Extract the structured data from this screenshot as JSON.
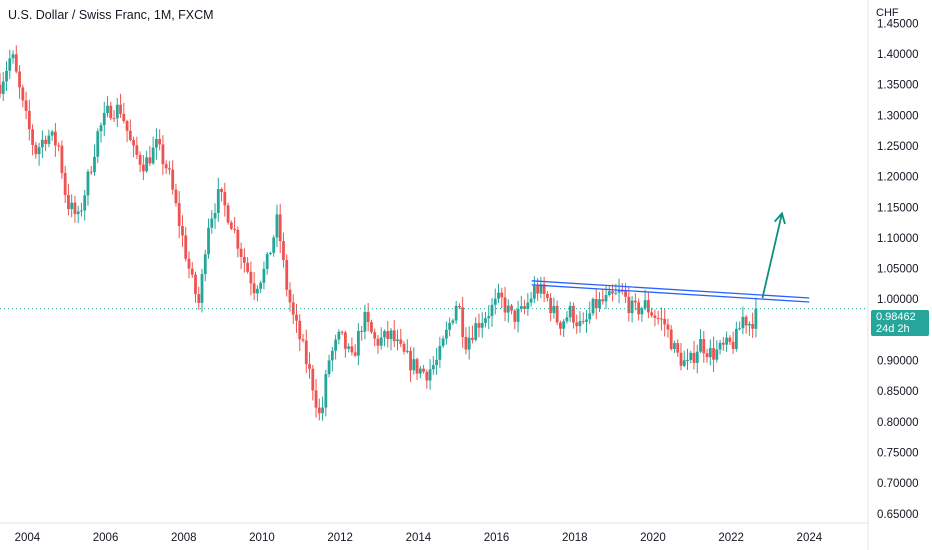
{
  "title": "U.S. Dollar / Swiss Franc, 1M, FXCM",
  "currency_label": "CHF",
  "price_label": {
    "price": "0.98462",
    "countdown": "24d 2h"
  },
  "colors": {
    "up": "#26a69a",
    "down": "#ef5350",
    "trendline": "#2962ff",
    "arrow": "#0e8f7e",
    "priceline": "#26a69a",
    "text": "#131722",
    "grid": "#e0e3eb"
  },
  "chart_data": {
    "type": "candlestick",
    "title": "U.S. Dollar / Swiss Franc, 1M, FXCM",
    "xlabel": "",
    "ylabel": "CHF",
    "xlim": [
      2003.3,
      2025.5
    ],
    "ylim": [
      0.635,
      1.475
    ],
    "x_ticks": [
      "2004",
      "2006",
      "2008",
      "2010",
      "2012",
      "2014",
      "2016",
      "2018",
      "2020",
      "2022",
      "2024"
    ],
    "x_tick_values": [
      2004,
      2006,
      2008,
      2010,
      2012,
      2014,
      2016,
      2018,
      2020,
      2022,
      2024
    ],
    "y_ticks": [
      "1.45000",
      "1.40000",
      "1.35000",
      "1.30000",
      "1.25000",
      "1.20000",
      "1.15000",
      "1.10000",
      "1.05000",
      "1.00000",
      "0.95000",
      "0.90000",
      "0.85000",
      "0.80000",
      "0.75000",
      "0.70000",
      "0.65000"
    ],
    "y_tick_values": [
      1.45,
      1.4,
      1.35,
      1.3,
      1.25,
      1.2,
      1.15,
      1.1,
      1.05,
      1.0,
      0.95,
      0.9,
      0.85,
      0.8,
      0.75,
      0.7,
      0.65
    ],
    "price_series": [
      [
        2003.3,
        1.35
      ],
      [
        2003.6,
        1.4
      ],
      [
        2003.9,
        1.31
      ],
      [
        2004.2,
        1.24
      ],
      [
        2004.5,
        1.27
      ],
      [
        2004.8,
        1.25
      ],
      [
        2005.0,
        1.16
      ],
      [
        2005.3,
        1.13
      ],
      [
        2005.6,
        1.21
      ],
      [
        2005.8,
        1.27
      ],
      [
        2006.1,
        1.31
      ],
      [
        2006.4,
        1.31
      ],
      [
        2006.7,
        1.24
      ],
      [
        2007.0,
        1.22
      ],
      [
        2007.3,
        1.25
      ],
      [
        2007.6,
        1.21
      ],
      [
        2007.8,
        1.15
      ],
      [
        2008.0,
        1.09
      ],
      [
        2008.2,
        1.03
      ],
      [
        2008.4,
        0.99
      ],
      [
        2008.6,
        1.12
      ],
      [
        2008.9,
        1.17
      ],
      [
        2009.2,
        1.13
      ],
      [
        2009.5,
        1.07
      ],
      [
        2009.8,
        1.02
      ],
      [
        2010.1,
        1.05
      ],
      [
        2010.4,
        1.13
      ],
      [
        2010.6,
        1.03
      ],
      [
        2010.8,
        0.97
      ],
      [
        2011.0,
        0.93
      ],
      [
        2011.3,
        0.86
      ],
      [
        2011.5,
        0.8
      ],
      [
        2011.7,
        0.9
      ],
      [
        2012.0,
        0.94
      ],
      [
        2012.3,
        0.9
      ],
      [
        2012.6,
        0.97
      ],
      [
        2012.9,
        0.93
      ],
      [
        2013.3,
        0.94
      ],
      [
        2013.6,
        0.91
      ],
      [
        2013.9,
        0.89
      ],
      [
        2014.2,
        0.88
      ],
      [
        2014.5,
        0.9
      ],
      [
        2014.8,
        0.96
      ],
      [
        2015.0,
        1.0
      ],
      [
        2015.2,
        0.93
      ],
      [
        2015.5,
        0.96
      ],
      [
        2015.8,
        0.98
      ],
      [
        2016.1,
        1.0
      ],
      [
        2016.4,
        0.97
      ],
      [
        2016.7,
        0.98
      ],
      [
        2017.0,
        1.02
      ],
      [
        2017.3,
        1.0
      ],
      [
        2017.6,
        0.96
      ],
      [
        2017.9,
        0.98
      ],
      [
        2018.2,
        0.95
      ],
      [
        2018.5,
        0.99
      ],
      [
        2018.9,
        1.0
      ],
      [
        2019.2,
        1.01
      ],
      [
        2019.5,
        0.98
      ],
      [
        2019.8,
        0.99
      ],
      [
        2020.1,
        0.97
      ],
      [
        2020.3,
        0.96
      ],
      [
        2020.6,
        0.91
      ],
      [
        2020.9,
        0.89
      ],
      [
        2021.2,
        0.93
      ],
      [
        2021.5,
        0.91
      ],
      [
        2021.8,
        0.92
      ],
      [
        2022.1,
        0.93
      ],
      [
        2022.3,
        0.97
      ],
      [
        2022.5,
        0.96
      ],
      [
        2022.7,
        0.98462
      ]
    ],
    "last_price": 0.98462,
    "annotations": {
      "trendline": {
        "start": [
          2016.9,
          1.03
        ],
        "end": [
          2024.0,
          1.002
        ]
      },
      "arrow": {
        "start": [
          2022.8,
          1.002
        ],
        "end": [
          2023.3,
          1.14
        ]
      }
    }
  }
}
